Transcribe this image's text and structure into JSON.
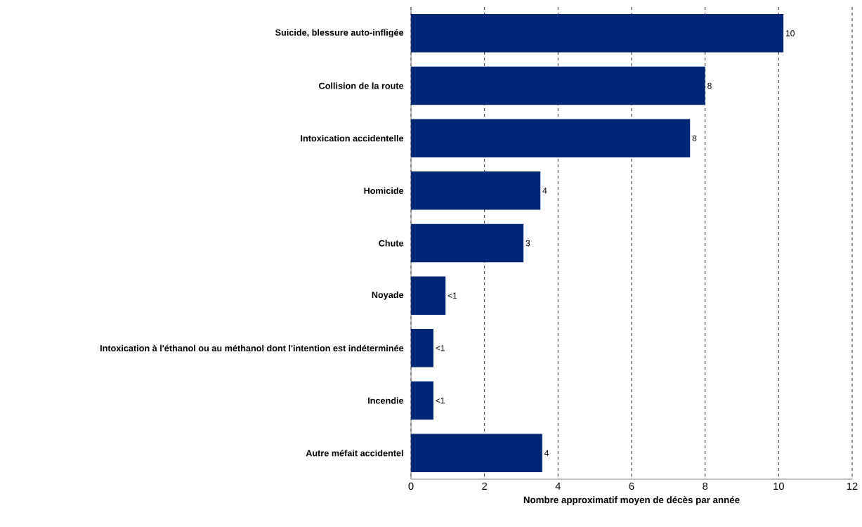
{
  "chart_data": {
    "type": "bar",
    "orientation": "horizontal",
    "xlabel": "Nombre approximatif moyen de décès par année",
    "categories": [
      "Suicide, blessure auto-infligée",
      "Collision de la route",
      "Intoxication accidentelle",
      "Homicide",
      "Chute",
      "Noyade",
      "Intoxication à l'éthanol ou au méthanol dont l'intention est indéterminée",
      "Incendie",
      "Autre méfait accidentel"
    ],
    "values": [
      10.13,
      8.0,
      7.59,
      3.52,
      3.06,
      0.94,
      0.61,
      0.61,
      3.57
    ],
    "value_labels": [
      "10",
      "8",
      "8",
      "4",
      "3",
      "<1",
      "<1",
      "<1",
      "4"
    ],
    "color": "#002776",
    "xlim": [
      0,
      12
    ],
    "xticks": [
      0,
      2,
      4,
      6,
      8,
      10,
      12
    ],
    "grid": "x"
  }
}
